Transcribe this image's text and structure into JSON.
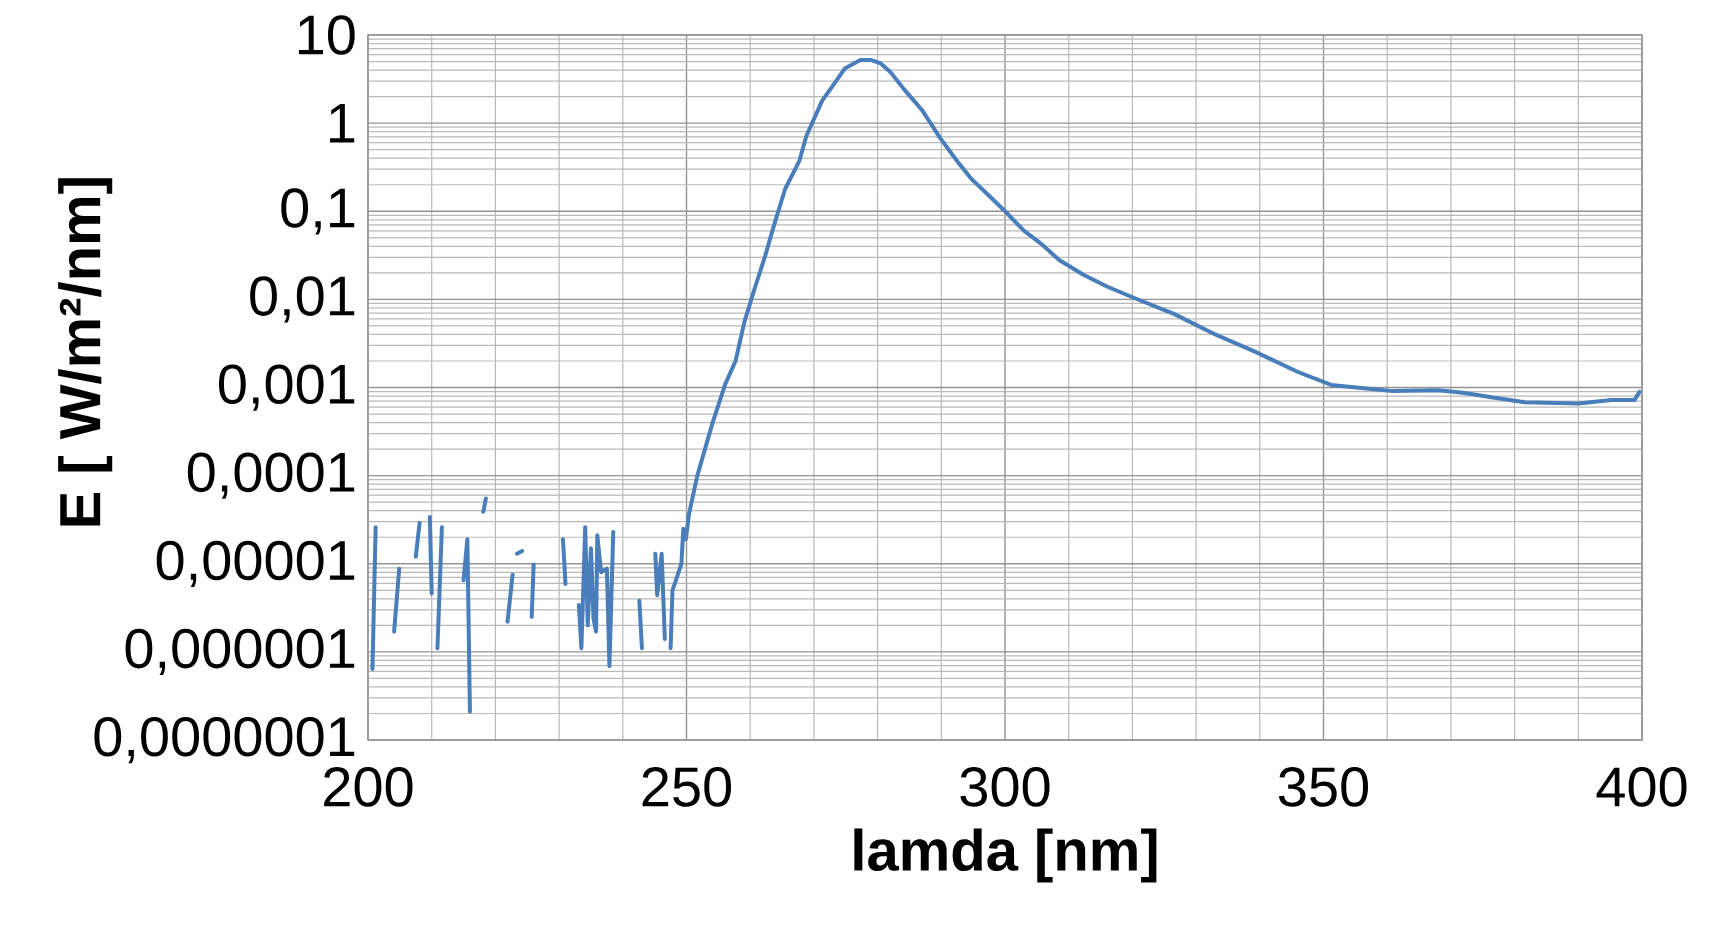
{
  "chart_data": {
    "type": "line",
    "xlabel": "lamda [nm]",
    "ylabel": "E [ W/m²/nm]",
    "log": "y",
    "grid": true,
    "color": "#4a7ebb",
    "xlim": [
      200,
      400
    ],
    "xticks": [
      200,
      250,
      300,
      350,
      400
    ],
    "ylim": [
      1e-07,
      10
    ],
    "yticks": [
      {
        "value": 1e-07,
        "label": "0,0000001"
      },
      {
        "value": 1e-06,
        "label": "0,000001"
      },
      {
        "value": 1e-05,
        "label": "0,00001"
      },
      {
        "value": 0.0001,
        "label": "0,0001"
      },
      {
        "value": 0.001,
        "label": "0,001"
      },
      {
        "value": 0.01,
        "label": "0,01"
      },
      {
        "value": 0.1,
        "label": "0,1"
      },
      {
        "value": 1,
        "label": "1"
      },
      {
        "value": 10,
        "label": "10"
      }
    ],
    "x": [
      200.7,
      201.2,
      201.5,
      204.1,
      204.9,
      205.5,
      207.5,
      208.1,
      208.5,
      209.7,
      210.0,
      210.4,
      210.9,
      211.6,
      212.0,
      215.0,
      215.6,
      216.0,
      216.5,
      218.1,
      218.5,
      219.0,
      221.9,
      222.7,
      223.0,
      223.4,
      224.2,
      224.8,
      225.7,
      226.0,
      226.5,
      230.6,
      231.0,
      232.0,
      233.1,
      233.5,
      234.1,
      234.5,
      235.0,
      235.4,
      235.8,
      236.0,
      236.6,
      237.5,
      237.9,
      238.5,
      239.5,
      242.6,
      243.0,
      244.0,
      245.1,
      245.4,
      246.1,
      246.6,
      247.0,
      247.5,
      247.8,
      249.2,
      249.5,
      249.9,
      250.4,
      251.7,
      254.1,
      256.1,
      257.7,
      259.1,
      260.8,
      262.4,
      263.8,
      265.5,
      267.7,
      268.8,
      271.3,
      272.7,
      274.9,
      277.3,
      279.0,
      280.4,
      282.0,
      284.2,
      287.0,
      289.8,
      292.5,
      294.8,
      297.5,
      300.0,
      303.0,
      305.8,
      308.5,
      312.3,
      316.0,
      320.1,
      326.6,
      333.0,
      339.5,
      346.0,
      351.2,
      356.3,
      360.9,
      368.0,
      371.9,
      377.1,
      381.6,
      390.0,
      395.2,
      398.8,
      399.6
    ],
    "values": [
      6.4e-07,
      2.6e-05,
      null,
      1.7e-06,
      8.8e-06,
      null,
      1.2e-05,
      2.9e-05,
      null,
      3.4e-05,
      4.6e-06,
      null,
      1.1e-06,
      2.6e-05,
      null,
      6.5e-06,
      1.9e-05,
      2.1e-07,
      null,
      3.9e-05,
      5.5e-05,
      null,
      2.2e-06,
      7.5e-06,
      null,
      1.3e-05,
      1.4e-05,
      null,
      2.5e-06,
      9.8e-06,
      null,
      1.9e-05,
      5.9e-06,
      null,
      3.4e-06,
      1.1e-06,
      2.6e-05,
      2e-06,
      1.5e-05,
      2.4e-06,
      1.7e-06,
      2.1e-05,
      8e-06,
      8.8e-06,
      6.9e-07,
      2.3e-05,
      null,
      3.8e-06,
      1.1e-06,
      null,
      1.3e-05,
      4.4e-06,
      1.3e-05,
      1.4e-06,
      null,
      1.1e-06,
      5e-06,
      1e-05,
      2.5e-05,
      1.9e-05,
      3.7e-05,
      0.0001,
      0.0004,
      0.0011,
      0.002,
      0.0056,
      0.014,
      0.032,
      0.072,
      0.18,
      0.37,
      0.71,
      1.8,
      2.5,
      4.2,
      5.2,
      5.2,
      4.8,
      3.8,
      2.4,
      1.4,
      0.68,
      0.37,
      0.23,
      0.15,
      0.1,
      0.06,
      0.042,
      0.028,
      0.019,
      0.014,
      0.0105,
      0.0068,
      0.004,
      0.0025,
      0.0015,
      0.00107,
      0.00098,
      0.00091,
      0.00093,
      0.00087,
      0.00076,
      0.00068,
      0.00066,
      0.00072,
      0.00072,
      0.00089
    ]
  }
}
